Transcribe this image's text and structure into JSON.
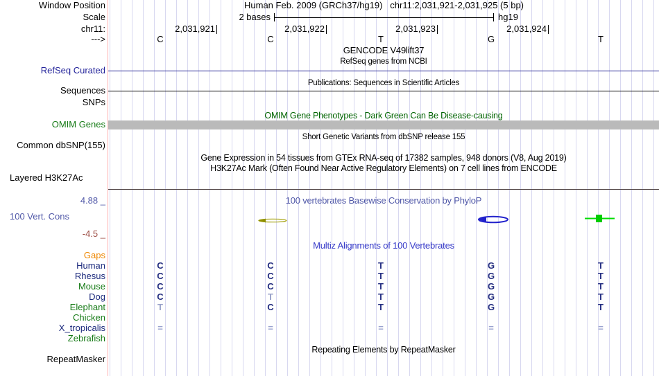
{
  "header": {
    "window_position_label": "Window Position",
    "title": "Human Feb. 2009 (GRCh37/hg19)   chr11:2,031,921-2,031,925 (5 bp)",
    "scale_label": "Scale",
    "scale_value": "2 bases",
    "assembly": "hg19",
    "chrom_label": "chr11:",
    "direction_arrow": "--->",
    "ruler_ticks": [
      "2,031,921",
      "2,031,922",
      "2,031,923",
      "2,031,924"
    ],
    "reference_bases": [
      "C",
      "C",
      "T",
      "G",
      "T"
    ]
  },
  "tracks": {
    "gencode_title": "GENCODE V49lift37",
    "refseq_subtitle": "RefSeq genes from NCBI",
    "refseq_label": "RefSeq Curated",
    "publications_title": "Publications: Sequences in Scientific Articles",
    "sequences_label": "Sequences",
    "snps_label": "SNPs",
    "omim_title": "OMIM Gene Phenotypes - Dark Green Can Be Disease-causing",
    "omim_label": "OMIM Genes",
    "dbsnp_title": "Short Genetic Variants from dbSNP release 155",
    "dbsnp_label": "Common dbSNP(155)",
    "gtex_title": "Gene Expression in 54 tissues from GTEx RNA-seq of 17382 samples, 948 donors (V8, Aug 2019)",
    "h3k27ac_title": "H3K27Ac Mark (Often Found Near Active Regulatory Elements) on 7 cell lines from ENCODE",
    "h3k27ac_label": "Layered H3K27Ac",
    "repeatmasker_title": "Repeating Elements by RepeatMasker",
    "repeatmasker_label": "RepeatMasker"
  },
  "conservation": {
    "title": "100 vertebrates Basewise Conservation by PhyloP",
    "label": "100 Vert. Cons",
    "max_value": "4.88 _",
    "min_value": "-4.5 _"
  },
  "alignment": {
    "title": "Multiz Alignments of 100 Vertebrates",
    "gaps_label": "Gaps",
    "species": [
      {
        "name": "Human",
        "color": "navy",
        "bases": [
          "C",
          "C",
          "T",
          "G",
          "T"
        ],
        "muted": [
          false,
          false,
          false,
          false,
          false
        ]
      },
      {
        "name": "Rhesus",
        "color": "navy",
        "bases": [
          "C",
          "C",
          "T",
          "G",
          "T"
        ],
        "muted": [
          false,
          false,
          false,
          false,
          false
        ]
      },
      {
        "name": "Mouse",
        "color": "green",
        "bases": [
          "C",
          "C",
          "T",
          "G",
          "T"
        ],
        "muted": [
          false,
          false,
          false,
          false,
          false
        ]
      },
      {
        "name": "Dog",
        "color": "navy",
        "bases": [
          "C",
          "T",
          "T",
          "G",
          "T"
        ],
        "muted": [
          false,
          true,
          false,
          false,
          false
        ]
      },
      {
        "name": "Elephant",
        "color": "green",
        "bases": [
          "T",
          "C",
          "T",
          "G",
          "T"
        ],
        "muted": [
          true,
          false,
          false,
          false,
          false
        ]
      },
      {
        "name": "Chicken",
        "color": "green",
        "bases": [
          "",
          "",
          "",
          "",
          ""
        ],
        "muted": [
          false,
          false,
          false,
          false,
          false
        ]
      },
      {
        "name": "X_tropicalis",
        "color": "navy",
        "bases": [
          "=",
          "=",
          "=",
          "=",
          "="
        ],
        "muted": [
          false,
          false,
          false,
          false,
          false
        ]
      },
      {
        "name": "Zebrafish",
        "color": "green",
        "bases": [
          "",
          "",
          "",
          "",
          ""
        ],
        "muted": [
          false,
          false,
          false,
          false,
          false
        ]
      }
    ]
  },
  "colors": {
    "gridline": "#d8d8f0",
    "track_left_border": "#ffb3b3",
    "refseq_line": "#1c1c90",
    "omim_bar": "#bababa",
    "species_navy": "#1c2a7d",
    "species_green": "#157a15",
    "gaps_orange": "#ef8700",
    "phylop_title_blue": "#5058a8",
    "multiz_title_blue": "#3438c8",
    "omim_title_green": "#006400",
    "negative_scale_maroon": "#9c4b42",
    "phylop_glyph_olive": "#a6a313",
    "phylop_glyph_blue": "#2222cc",
    "phylop_glyph_green": "#00cc00"
  }
}
